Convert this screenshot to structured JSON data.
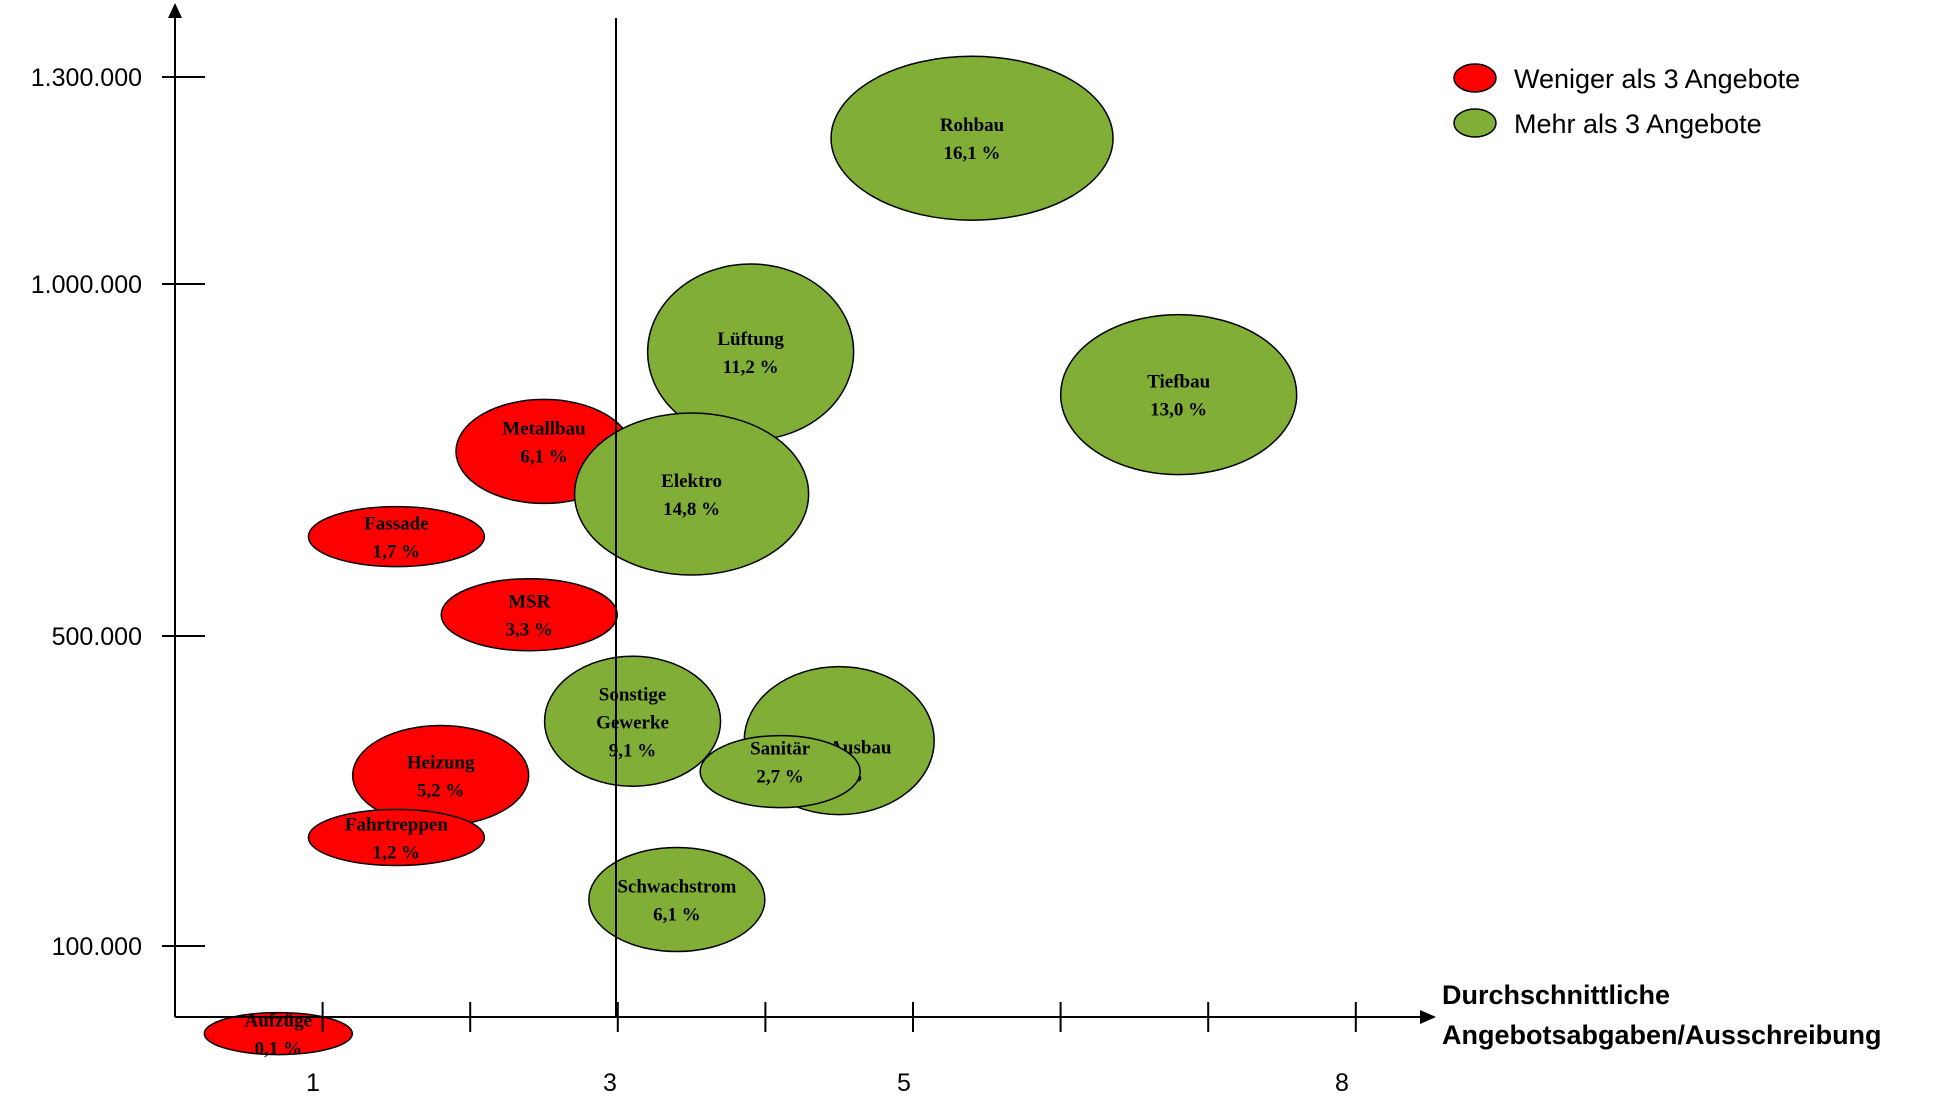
{
  "chart_data": {
    "type": "bubble",
    "xlabel": [
      "Durchschnittliche",
      "Angebotsabgaben/Ausschreibung"
    ],
    "ylabel": "",
    "x_tick_labels": [
      "1",
      "3",
      "5",
      "8"
    ],
    "y_tick_labels": [
      "1.300.000",
      "1.000.000",
      "500.000",
      "100.000"
    ],
    "vertical_reference_line": "3",
    "legend": [
      {
        "label": "Weniger als 3 Angebote",
        "color": "#ff0000"
      },
      {
        "label": "Mehr als 3 Angebote",
        "color": "#80ae37"
      }
    ],
    "series": [
      {
        "name": "Weniger als 3 Angebote",
        "color": "#ff0000",
        "points": [
          {
            "label": [
              "Metallbau",
              "6,1 %"
            ],
            "x": 2.5,
            "y": 760000
          },
          {
            "label": [
              "Fassade",
              "1,7 %"
            ],
            "x": 1.5,
            "y": 640000
          },
          {
            "label": [
              "MSR",
              "3,3 %"
            ],
            "x": 2.4,
            "y": 530000
          },
          {
            "label": [
              "Heizung",
              "5,2 %"
            ],
            "x": 1.8,
            "y": 320000
          },
          {
            "label": [
              "Fahrtreppen",
              "1,2 %"
            ],
            "x": 1.5,
            "y": 240000
          },
          {
            "label": [
              "Aufzüge",
              "0,1 %"
            ],
            "x": 0.7,
            "y": 40000
          }
        ]
      },
      {
        "name": "Mehr als 3 Angebote",
        "color": "#80ae37",
        "points": [
          {
            "label": [
              "Rohbau",
              "16,1 %"
            ],
            "x": 5.4,
            "y": 1210000
          },
          {
            "label": [
              "Lüftung",
              "11,2 %"
            ],
            "x": 3.9,
            "y": 900000
          },
          {
            "label": [
              "Tiefbau",
              "13,0 %"
            ],
            "x": 6.8,
            "y": 840000
          },
          {
            "label": [
              "Elektro",
              "14,8 %"
            ],
            "x": 3.5,
            "y": 700000
          },
          {
            "label": [
              "Sonstige",
              "Gewerke",
              "9,1 %"
            ],
            "x": 3.1,
            "y": 390000
          },
          {
            "label": [
              "Allg. Ausbau",
              "9,4 %"
            ],
            "x": 4.5,
            "y": 365000
          },
          {
            "label": [
              "Sanitär",
              "2,7 %"
            ],
            "x": 4.1,
            "y": 325000
          },
          {
            "label": [
              "Schwachstrom",
              "6,1 %"
            ],
            "x": 3.4,
            "y": 160000
          }
        ]
      }
    ]
  }
}
